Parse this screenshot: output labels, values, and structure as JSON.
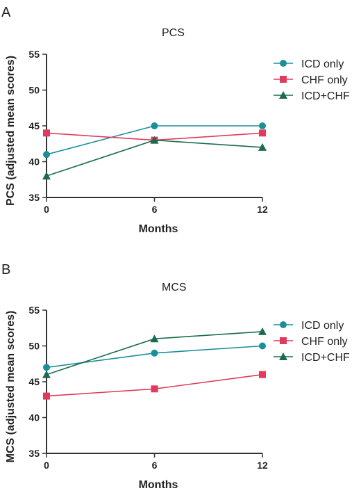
{
  "chart_data": [
    {
      "panel": "A",
      "type": "line",
      "title": "PCS",
      "xlabel": "Months",
      "ylabel": "PCS  (adjusted mean scores)",
      "x": [
        0,
        6,
        12
      ],
      "xticks": [
        "0",
        "6",
        "12"
      ],
      "ylim": [
        35,
        55
      ],
      "yticks": [
        35,
        40,
        45,
        50,
        55
      ],
      "grid": false,
      "legend_position": "top-right",
      "series": [
        {
          "name": "ICD only",
          "values": [
            41,
            45,
            45
          ],
          "color": "#1a8f9a",
          "marker": "circle"
        },
        {
          "name": "CHF only",
          "values": [
            44,
            43,
            44
          ],
          "color": "#e03a5c",
          "marker": "square"
        },
        {
          "name": "ICD+CHF",
          "values": [
            38,
            43,
            42
          ],
          "color": "#1c6b50",
          "marker": "triangle"
        }
      ]
    },
    {
      "panel": "B",
      "type": "line",
      "title": "MCS",
      "xlabel": "Months",
      "ylabel": "MCS (adjusted mean scores)",
      "x": [
        0,
        6,
        12
      ],
      "xticks": [
        "0",
        "6",
        "12"
      ],
      "ylim": [
        35,
        55
      ],
      "yticks": [
        35,
        40,
        45,
        50,
        55
      ],
      "grid": false,
      "legend_position": "top-right",
      "series": [
        {
          "name": "ICD only",
          "values": [
            47,
            49,
            50
          ],
          "color": "#1a8f9a",
          "marker": "circle"
        },
        {
          "name": "CHF only",
          "values": [
            43,
            44,
            46
          ],
          "color": "#e03a5c",
          "marker": "square"
        },
        {
          "name": "ICD+CHF",
          "values": [
            46,
            51,
            52
          ],
          "color": "#1c6b50",
          "marker": "triangle"
        }
      ]
    }
  ]
}
